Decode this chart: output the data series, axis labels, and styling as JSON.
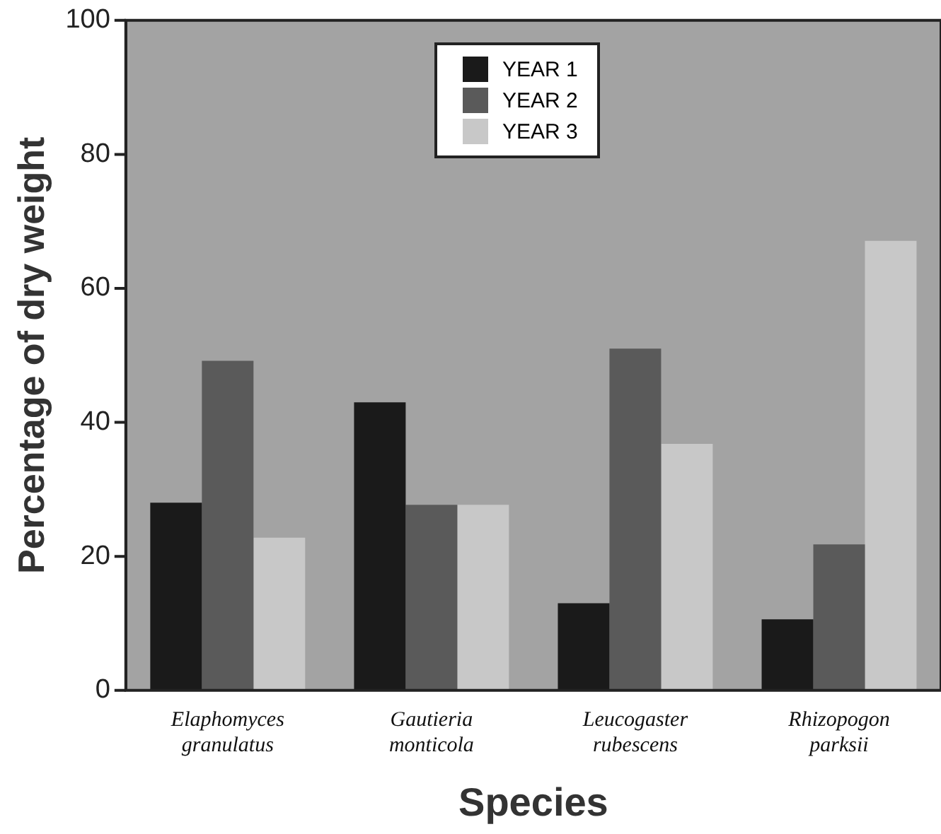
{
  "chart_data": {
    "type": "bar",
    "xlabel": "Species",
    "ylabel": "Percentage of dry weight",
    "categories": [
      "Elaphomyces granulatus",
      "Gautieria monticola",
      "Leucogaster rubescens",
      "Rhizopogon parksii"
    ],
    "series": [
      {
        "name": "YEAR 1",
        "color": "#1a1a1a",
        "values": [
          28,
          43,
          13,
          10.6
        ]
      },
      {
        "name": "YEAR 2",
        "color": "#5a5a5a",
        "values": [
          49.2,
          27.7,
          51,
          21.8
        ]
      },
      {
        "name": "YEAR 3",
        "color": "#c8c8c8",
        "values": [
          22.8,
          27.7,
          36.8,
          67.1
        ]
      }
    ],
    "ylim": [
      0,
      100
    ],
    "yticks": [
      0,
      20,
      40,
      60,
      80,
      100
    ],
    "grid": false,
    "legend": "top"
  }
}
